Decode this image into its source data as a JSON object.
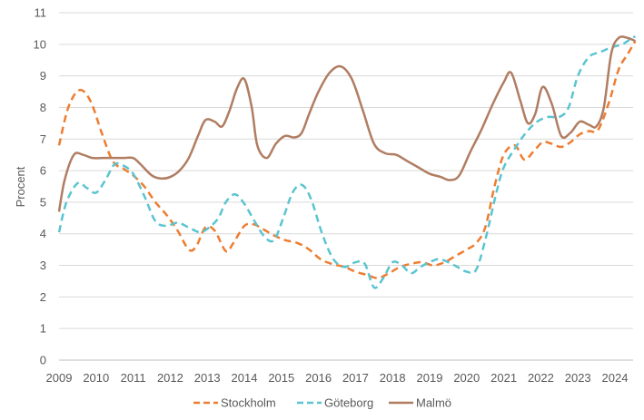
{
  "chart_data": {
    "type": "line",
    "title": "",
    "xlabel": "",
    "ylabel": "Procent",
    "xlim": [
      2009,
      2024.55
    ],
    "ylim": [
      0,
      11
    ],
    "y_ticks": [
      0,
      1,
      2,
      3,
      4,
      5,
      6,
      7,
      8,
      9,
      10,
      11
    ],
    "x_ticks": [
      "2009",
      "2010",
      "2011",
      "2012",
      "2013",
      "2014",
      "2015",
      "2016",
      "2017",
      "2018",
      "2019",
      "2020",
      "2021",
      "2022",
      "2023",
      "2024"
    ],
    "grid": "horizontal",
    "legend_position": "bottom",
    "series": [
      {
        "name": "Stockholm",
        "color": "#ed7d31",
        "dash": "dashed",
        "x": [
          2009.0,
          2009.25,
          2009.55,
          2009.85,
          2010.15,
          2010.45,
          2010.75,
          2011.0,
          2011.3,
          2011.6,
          2011.9,
          2012.2,
          2012.5,
          2012.7,
          2012.95,
          2013.2,
          2013.5,
          2013.7,
          2014.0,
          2014.25,
          2014.5,
          2014.8,
          2015.1,
          2015.45,
          2015.75,
          2016.05,
          2016.35,
          2016.7,
          2017.0,
          2017.3,
          2017.6,
          2017.9,
          2018.2,
          2018.5,
          2018.8,
          2019.1,
          2019.4,
          2019.7,
          2020.0,
          2020.25,
          2020.5,
          2020.75,
          2021.0,
          2021.3,
          2021.55,
          2021.8,
          2022.05,
          2022.3,
          2022.55,
          2022.8,
          2023.05,
          2023.3,
          2023.55,
          2023.85,
          2024.1,
          2024.35,
          2024.55
        ],
        "y": [
          6.8,
          8.0,
          8.55,
          8.2,
          7.2,
          6.3,
          6.05,
          5.85,
          5.5,
          5.0,
          4.6,
          4.1,
          3.5,
          3.6,
          4.2,
          4.1,
          3.45,
          3.7,
          4.25,
          4.3,
          4.15,
          3.95,
          3.8,
          3.7,
          3.5,
          3.2,
          3.05,
          2.95,
          2.8,
          2.7,
          2.6,
          2.75,
          2.95,
          3.05,
          3.1,
          3.0,
          3.1,
          3.3,
          3.5,
          3.7,
          4.2,
          5.5,
          6.5,
          6.8,
          6.35,
          6.6,
          6.9,
          6.85,
          6.75,
          6.9,
          7.15,
          7.25,
          7.3,
          8.2,
          9.2,
          9.7,
          10.1
        ]
      },
      {
        "name": "Göteborg",
        "color": "#5bc4d1",
        "dash": "dashed",
        "x": [
          2009.0,
          2009.2,
          2009.5,
          2009.75,
          2010.0,
          2010.25,
          2010.5,
          2010.75,
          2011.0,
          2011.3,
          2011.6,
          2011.9,
          2012.2,
          2012.5,
          2012.8,
          2013.05,
          2013.3,
          2013.5,
          2013.75,
          2014.0,
          2014.25,
          2014.55,
          2014.8,
          2015.05,
          2015.3,
          2015.55,
          2015.8,
          2016.1,
          2016.4,
          2016.7,
          2017.0,
          2017.25,
          2017.5,
          2017.75,
          2018.0,
          2018.25,
          2018.5,
          2018.75,
          2019.0,
          2019.25,
          2019.5,
          2019.75,
          2020.0,
          2020.25,
          2020.5,
          2020.8,
          2021.0,
          2021.3,
          2021.6,
          2021.9,
          2022.2,
          2022.5,
          2022.75,
          2023.0,
          2023.3,
          2023.6,
          2023.9,
          2024.2,
          2024.4,
          2024.55
        ],
        "y": [
          4.05,
          5.0,
          5.6,
          5.45,
          5.3,
          5.7,
          6.2,
          6.15,
          5.9,
          5.2,
          4.4,
          4.25,
          4.35,
          4.2,
          4.05,
          4.2,
          4.5,
          5.0,
          5.25,
          4.95,
          4.45,
          3.9,
          3.8,
          4.5,
          5.3,
          5.55,
          5.1,
          4.0,
          3.2,
          2.95,
          3.1,
          3.05,
          2.3,
          2.6,
          3.1,
          3.0,
          2.75,
          2.95,
          3.1,
          3.2,
          3.1,
          2.95,
          2.8,
          2.85,
          3.8,
          5.3,
          6.1,
          6.7,
          7.2,
          7.55,
          7.7,
          7.7,
          8.0,
          9.0,
          9.6,
          9.75,
          9.9,
          10.0,
          10.15,
          10.25
        ]
      },
      {
        "name": "Malmö",
        "color": "#b07d62",
        "dash": "solid",
        "x": [
          2009.0,
          2009.15,
          2009.4,
          2009.65,
          2009.9,
          2010.2,
          2010.5,
          2010.75,
          2011.0,
          2011.2,
          2011.5,
          2011.75,
          2012.0,
          2012.25,
          2012.5,
          2012.75,
          2012.95,
          2013.2,
          2013.4,
          2013.6,
          2013.8,
          2014.0,
          2014.2,
          2014.35,
          2014.6,
          2014.85,
          2015.1,
          2015.35,
          2015.55,
          2015.75,
          2016.0,
          2016.3,
          2016.6,
          2016.9,
          2017.2,
          2017.5,
          2017.8,
          2018.1,
          2018.4,
          2018.7,
          2019.0,
          2019.3,
          2019.55,
          2019.8,
          2020.1,
          2020.4,
          2020.7,
          2021.0,
          2021.2,
          2021.45,
          2021.65,
          2021.85,
          2022.05,
          2022.3,
          2022.55,
          2022.8,
          2023.05,
          2023.3,
          2023.5,
          2023.7,
          2023.9,
          2024.1,
          2024.35,
          2024.55
        ],
        "y": [
          4.7,
          5.7,
          6.5,
          6.5,
          6.4,
          6.4,
          6.4,
          6.4,
          6.4,
          6.2,
          5.85,
          5.75,
          5.8,
          6.0,
          6.4,
          7.1,
          7.6,
          7.55,
          7.4,
          7.9,
          8.6,
          8.9,
          8.0,
          6.8,
          6.4,
          6.85,
          7.1,
          7.05,
          7.2,
          7.8,
          8.5,
          9.1,
          9.3,
          8.9,
          7.9,
          6.85,
          6.55,
          6.5,
          6.3,
          6.1,
          5.9,
          5.8,
          5.7,
          5.85,
          6.6,
          7.3,
          8.1,
          8.8,
          9.1,
          8.2,
          7.5,
          7.8,
          8.65,
          8.1,
          7.1,
          7.2,
          7.55,
          7.45,
          7.4,
          8.0,
          9.7,
          10.2,
          10.2,
          10.1
        ]
      }
    ]
  }
}
